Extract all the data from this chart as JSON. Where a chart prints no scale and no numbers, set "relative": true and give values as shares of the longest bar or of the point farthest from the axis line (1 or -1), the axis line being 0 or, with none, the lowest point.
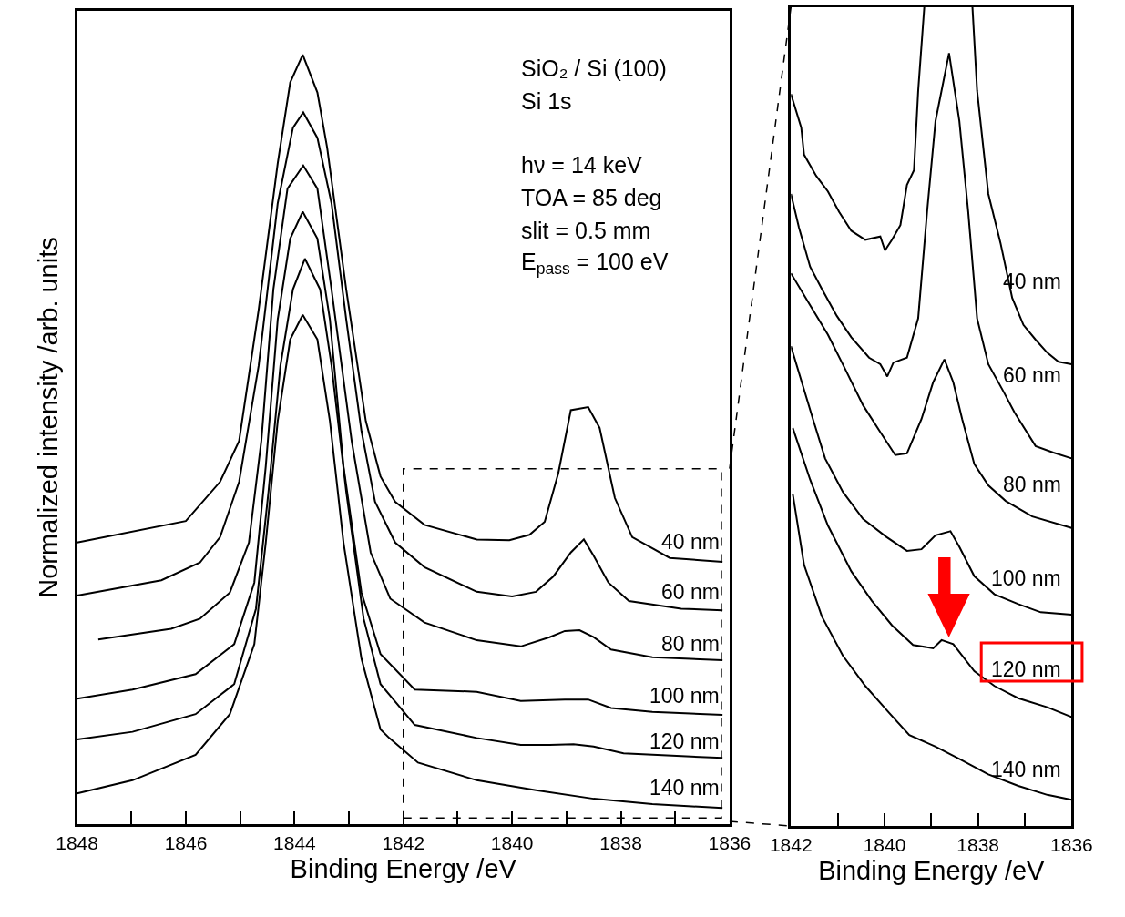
{
  "chart_data": [
    {
      "type": "line",
      "xlabel": "Binding Energy /eV",
      "ylabel": "Normalized intensity /arb. units",
      "relative": true,
      "tick_labels": "x",
      "line_style": "solid",
      "xlim": [
        1848,
        1836
      ],
      "xticks": [
        1848,
        {
          "value": 1847,
          "label": null
        },
        1846,
        {
          "value": 1845,
          "label": null
        },
        1844,
        {
          "value": 1843,
          "label": null
        },
        1842,
        {
          "value": 1841,
          "label": null
        },
        1840,
        {
          "value": 1839,
          "label": null
        },
        1838,
        {
          "value": 1837,
          "label": null
        },
        1836
      ],
      "annotations": [
        "SiO₂ / Si (100)",
        "Si 1s",
        "hν = 14 keV",
        "TOA = 85 deg",
        "slit = 0.5 mm",
        "E$_{pass}$ = 100 eV"
      ],
      "series": [
        {
          "name": "40 nm",
          "color": "#000000",
          "x": [
            1848,
            1846,
            1845.37,
            1845.02,
            1844.66,
            1844.31,
            1844.08,
            1843.85,
            1843.58,
            1843.4,
            1843.05,
            1842.69,
            1842.42,
            1842.15,
            1841.61,
            1840.65,
            1840.05,
            1839.68,
            1839.4,
            1839.15,
            1838.92,
            1838.6,
            1838.39,
            1838.11,
            1837.79,
            1837.1,
            1836.13
          ],
          "values": [
            0.366,
            0.394,
            0.445,
            0.498,
            0.669,
            0.859,
            0.964,
            1.0,
            0.951,
            0.879,
            0.695,
            0.524,
            0.452,
            0.419,
            0.389,
            0.37,
            0.369,
            0.376,
            0.393,
            0.456,
            0.538,
            0.542,
            0.515,
            0.424,
            0.373,
            0.346,
            0.341
          ]
        },
        {
          "name": "60 nm",
          "color": "#000000",
          "x": [
            1848,
            1846.45,
            1845.74,
            1845.37,
            1845.02,
            1844.66,
            1844.31,
            1844.03,
            1843.84,
            1843.58,
            1843.32,
            1843.05,
            1842.77,
            1842.52,
            1842.15,
            1841.61,
            1840.65,
            1840.0,
            1839.56,
            1839.24,
            1838.92,
            1838.68,
            1838.5,
            1838.23,
            1837.85,
            1836.89,
            1836.13
          ],
          "values": [
            0.297,
            0.317,
            0.34,
            0.373,
            0.445,
            0.596,
            0.807,
            0.905,
            0.925,
            0.892,
            0.807,
            0.656,
            0.511,
            0.419,
            0.366,
            0.334,
            0.302,
            0.296,
            0.302,
            0.322,
            0.353,
            0.37,
            0.349,
            0.314,
            0.29,
            0.28,
            0.278
          ]
        },
        {
          "name": "80 nm",
          "color": "#000000",
          "x": [
            1847.61,
            1846.27,
            1845.74,
            1845.19,
            1844.84,
            1844.61,
            1844.39,
            1844.13,
            1843.84,
            1843.58,
            1843.32,
            1842.95,
            1842.6,
            1842.24,
            1841.61,
            1840.65,
            1839.84,
            1839.31,
            1839.03,
            1838.76,
            1838.5,
            1838.18,
            1837.42,
            1836.13
          ],
          "values": [
            0.24,
            0.254,
            0.267,
            0.301,
            0.366,
            0.499,
            0.695,
            0.826,
            0.856,
            0.826,
            0.695,
            0.498,
            0.353,
            0.293,
            0.262,
            0.239,
            0.231,
            0.243,
            0.251,
            0.252,
            0.243,
            0.227,
            0.217,
            0.213
          ]
        },
        {
          "name": "100 nm",
          "color": "#000000",
          "x": [
            1848,
            1846.98,
            1845.82,
            1845.11,
            1844.74,
            1844.53,
            1844.31,
            1844.08,
            1843.85,
            1843.58,
            1843.35,
            1843.1,
            1842.77,
            1842.42,
            1841.79,
            1840.65,
            1839.84,
            1839.03,
            1838.6,
            1838.18,
            1837.42,
            1836.13
          ],
          "values": [
            0.163,
            0.175,
            0.195,
            0.234,
            0.314,
            0.465,
            0.656,
            0.761,
            0.796,
            0.761,
            0.656,
            0.465,
            0.301,
            0.221,
            0.175,
            0.172,
            0.16,
            0.162,
            0.162,
            0.151,
            0.146,
            0.142
          ]
        },
        {
          "name": "120 nm",
          "color": "#000000",
          "x": [
            1848,
            1846.98,
            1845.82,
            1845.11,
            1844.71,
            1844.48,
            1844.26,
            1844.03,
            1843.81,
            1843.53,
            1843.32,
            1843.05,
            1842.73,
            1842.42,
            1841.79,
            1840.65,
            1839.84,
            1839.31,
            1838.87,
            1838.5,
            1837.95,
            1836.13
          ],
          "values": [
            0.11,
            0.12,
            0.143,
            0.182,
            0.28,
            0.432,
            0.596,
            0.695,
            0.735,
            0.695,
            0.596,
            0.432,
            0.267,
            0.182,
            0.129,
            0.112,
            0.103,
            0.103,
            0.104,
            0.101,
            0.092,
            0.086
          ]
        },
        {
          "name": "140 nm",
          "color": "#000000",
          "x": [
            1848,
            1846.98,
            1845.82,
            1845.19,
            1844.74,
            1844.53,
            1844.31,
            1844.08,
            1843.85,
            1843.58,
            1843.35,
            1843.1,
            1842.77,
            1842.42,
            1842.26,
            1841.73,
            1840.65,
            1839.56,
            1838.5,
            1837.42,
            1836.13
          ],
          "values": [
            0.04,
            0.057,
            0.09,
            0.143,
            0.234,
            0.366,
            0.524,
            0.63,
            0.662,
            0.63,
            0.524,
            0.366,
            0.215,
            0.123,
            0.112,
            0.08,
            0.057,
            0.044,
            0.033,
            0.026,
            0.021
          ]
        }
      ]
    },
    {
      "type": "line",
      "xlabel": "Binding Energy /eV",
      "relative": true,
      "tick_labels": "x",
      "line_style": "solid",
      "xlim": [
        1842,
        1836
      ],
      "xticks": [
        1842,
        {
          "value": 1841,
          "label": null
        },
        1840,
        {
          "value": 1839,
          "label": null
        },
        1838,
        {
          "value": 1837,
          "label": null
        },
        1836
      ],
      "series": [
        {
          "name": "40 nm",
          "color": "#000000",
          "x": [
            1842.0,
            1841.78,
            1841.72,
            1841.46,
            1841.21,
            1840.97,
            1840.71,
            1840.41,
            1840.09,
            1839.99,
            1839.84,
            1839.66,
            1839.52,
            1839.37,
            1839.28,
            1839.15,
            1838.6,
            1838.12,
            1838.02,
            1837.78,
            1837.52,
            1837.27,
            1837.03,
            1836.77,
            1836.52,
            1836.28,
            1836.0
          ],
          "values": [
            0.894,
            0.853,
            0.82,
            0.794,
            0.775,
            0.75,
            0.727,
            0.716,
            0.72,
            0.703,
            0.716,
            0.734,
            0.783,
            0.801,
            0.898,
            1.0,
            null,
            1.0,
            0.898,
            0.772,
            0.712,
            0.645,
            0.612,
            0.594,
            0.578,
            0.567,
            0.564
          ]
        },
        {
          "name": "60 nm",
          "color": "#000000",
          "x": [
            1842.0,
            1841.83,
            1841.59,
            1841.34,
            1841.02,
            1840.71,
            1840.33,
            1840.09,
            1839.94,
            1839.81,
            1839.52,
            1839.28,
            1839.09,
            1838.91,
            1838.62,
            1838.4,
            1838.21,
            1838.02,
            1837.78,
            1837.46,
            1837.22,
            1836.77,
            1836.39,
            1836.0
          ],
          "values": [
            0.772,
            0.731,
            0.683,
            0.656,
            0.623,
            0.597,
            0.572,
            0.564,
            0.549,
            0.566,
            0.572,
            0.62,
            0.75,
            0.861,
            0.944,
            0.861,
            0.75,
            0.62,
            0.564,
            0.531,
            0.505,
            0.464,
            0.456,
            0.449
          ]
        },
        {
          "name": "80 nm",
          "color": "#000000",
          "x": [
            1842.0,
            1841.59,
            1841.21,
            1840.84,
            1840.46,
            1840.09,
            1839.77,
            1839.52,
            1839.21,
            1838.96,
            1838.72,
            1838.53,
            1838.34,
            1838.08,
            1837.78,
            1837.41,
            1836.84,
            1836.0
          ],
          "values": [
            0.675,
            0.636,
            0.6,
            0.558,
            0.514,
            0.481,
            0.453,
            0.455,
            0.497,
            0.542,
            0.57,
            0.542,
            0.497,
            0.442,
            0.416,
            0.397,
            0.378,
            0.364
          ]
        },
        {
          "name": "100 nm",
          "color": "#000000",
          "x": [
            1842.0,
            1841.53,
            1841.27,
            1840.89,
            1840.46,
            1839.96,
            1839.52,
            1839.21,
            1838.91,
            1838.59,
            1838.4,
            1838.08,
            1837.65,
            1837.14,
            1836.66,
            1836.0
          ],
          "values": [
            0.586,
            0.497,
            0.449,
            0.408,
            0.375,
            0.353,
            0.336,
            0.338,
            0.355,
            0.36,
            0.341,
            0.305,
            0.283,
            0.271,
            0.261,
            0.258
          ]
        },
        {
          "name": "120 nm",
          "color": "#000000",
          "x": [
            1841.96,
            1841.59,
            1841.21,
            1840.71,
            1840.27,
            1839.84,
            1839.39,
            1838.96,
            1838.78,
            1838.53,
            1838.08,
            1837.65,
            1837.14,
            1836.52,
            1836.0
          ],
          "values": [
            0.486,
            0.423,
            0.367,
            0.311,
            0.275,
            0.245,
            0.221,
            0.217,
            0.227,
            0.222,
            0.189,
            0.171,
            0.156,
            0.145,
            0.133
          ]
        },
        {
          "name": "140 nm",
          "color": "#000000",
          "x": [
            1841.96,
            1841.72,
            1841.34,
            1840.89,
            1840.41,
            1839.9,
            1839.47,
            1838.91,
            1838.4,
            1837.78,
            1837.14,
            1836.52,
            1836.0
          ],
          "values": [
            0.405,
            0.319,
            0.256,
            0.208,
            0.171,
            0.138,
            0.111,
            0.097,
            0.082,
            0.063,
            0.049,
            0.038,
            0.032
          ]
        }
      ]
    }
  ]
}
